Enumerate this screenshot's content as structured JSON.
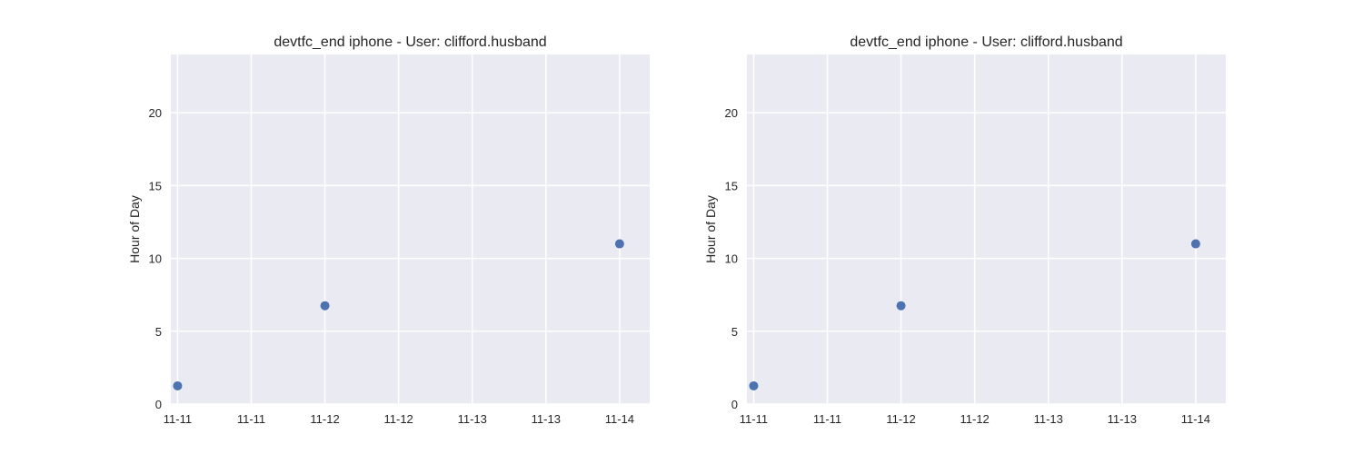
{
  "chart_data": [
    {
      "type": "scatter",
      "title": "devtfc_end iphone - User: clifford.husband",
      "xlabel": "",
      "ylabel": "Hour of Day",
      "x_tick_labels": [
        "11-11",
        "11-11",
        "11-12",
        "11-12",
        "11-13",
        "11-13",
        "11-14"
      ],
      "y_ticks": [
        0,
        5,
        10,
        15,
        20
      ],
      "ylim": [
        0,
        24
      ],
      "xlim": [
        "2024-11-10 20:24",
        "2024-11-14 02:24"
      ],
      "grid": true,
      "series": [
        {
          "color": "#4c72b0",
          "points": [
            {
              "x": "2024-11-10 21:30",
              "y": 1.25
            },
            {
              "x": "2024-11-11 21:30",
              "y": 6.75
            },
            {
              "x": "2024-11-13 21:30",
              "y": 11.0
            }
          ]
        }
      ]
    },
    {
      "type": "scatter",
      "title": "devtfc_end iphone - User: clifford.husband",
      "xlabel": "",
      "ylabel": "Hour of Day",
      "x_tick_labels": [
        "11-11",
        "11-11",
        "11-12",
        "11-12",
        "11-13",
        "11-13",
        "11-14"
      ],
      "y_ticks": [
        0,
        5,
        10,
        15,
        20
      ],
      "ylim": [
        0,
        24
      ],
      "xlim": [
        "2024-11-10 20:24",
        "2024-11-14 02:24"
      ],
      "grid": true,
      "series": [
        {
          "color": "#4c72b0",
          "points": [
            {
              "x": "2024-11-10 21:30",
              "y": 1.25
            },
            {
              "x": "2024-11-11 21:30",
              "y": 6.75
            },
            {
              "x": "2024-11-13 21:30",
              "y": 11.0
            }
          ]
        }
      ]
    }
  ],
  "colors": {
    "plot_background": "#eaeaf2",
    "grid": "#ffffff",
    "marker": "#4c72b0"
  }
}
